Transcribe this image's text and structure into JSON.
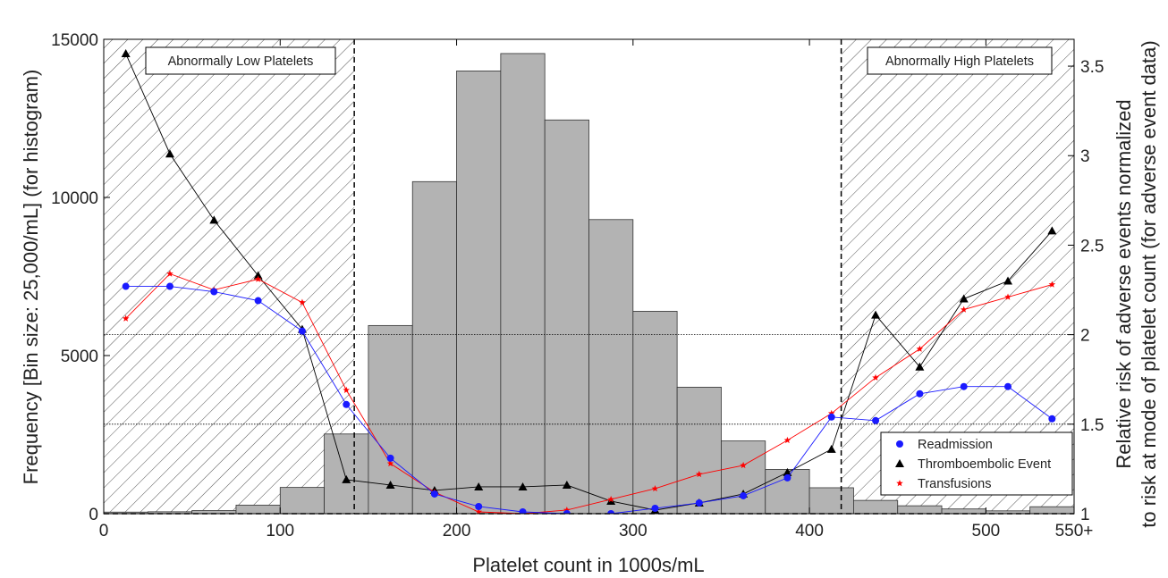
{
  "chart_data": {
    "type": "bar+line",
    "xlabel": "Platelet count in 1000s/mL",
    "ylabel": "Frequency [Bin size: 25,000/mL] (for histogram)",
    "y2label_line1": "Relative risk of adverse events normalized",
    "y2label_line2": "to risk at mode of platelet count (for adverse event data)",
    "xlim": [
      0,
      550
    ],
    "ylim": [
      0,
      15000
    ],
    "y2lim": [
      1,
      3.65
    ],
    "x_ticks": [
      {
        "value": 0,
        "label": "0"
      },
      {
        "value": 100,
        "label": "100"
      },
      {
        "value": 200,
        "label": "200"
      },
      {
        "value": 300,
        "label": "300"
      },
      {
        "value": 400,
        "label": "400"
      },
      {
        "value": 500,
        "label": "500"
      },
      {
        "value": 550,
        "label": "550+"
      }
    ],
    "y_ticks": [
      {
        "value": 0,
        "label": "0"
      },
      {
        "value": 5000,
        "label": "5000"
      },
      {
        "value": 10000,
        "label": "10000"
      },
      {
        "value": 15000,
        "label": "15000"
      }
    ],
    "y2_ticks": [
      {
        "value": 1,
        "label": "1"
      },
      {
        "value": 1.5,
        "label": "1.5"
      },
      {
        "value": 2,
        "label": "2"
      },
      {
        "value": 2.5,
        "label": "2.5"
      },
      {
        "value": 3,
        "label": "3"
      },
      {
        "value": 3.5,
        "label": "3.5"
      }
    ],
    "histogram": {
      "bin_width": 25,
      "bin_starts": [
        0,
        25,
        50,
        75,
        100,
        125,
        150,
        175,
        200,
        225,
        250,
        275,
        300,
        325,
        350,
        375,
        400,
        425,
        450,
        475,
        500,
        525
      ],
      "values": [
        50,
        60,
        100,
        270,
        830,
        2520,
        5950,
        10500,
        14000,
        14550,
        12450,
        9300,
        6400,
        4000,
        2300,
        1400,
        820,
        420,
        250,
        150,
        90,
        220
      ],
      "color": "#b3b3b3"
    },
    "regions": [
      {
        "label": "Abnormally Low Platelets",
        "from": 0,
        "to": 142
      },
      {
        "label": "Abnormally High Platelets",
        "from": 418,
        "to": 550
      }
    ],
    "reference_lines_y2": [
      1.0,
      1.5,
      2.0
    ],
    "x_points": [
      12.5,
      37.5,
      62.5,
      87.5,
      112.5,
      137.5,
      162.5,
      187.5,
      212.5,
      237.5,
      262.5,
      287.5,
      312.5,
      337.5,
      362.5,
      387.5,
      412.5,
      437.5,
      462.5,
      487.5,
      512.5,
      537.5
    ],
    "series": [
      {
        "name": "Readmission",
        "marker": "circle",
        "color": "#1a1aff",
        "values": [
          2.27,
          2.27,
          2.24,
          2.19,
          2.02,
          1.61,
          1.31,
          1.11,
          1.04,
          1.01,
          1.0,
          1.0,
          1.03,
          1.06,
          1.1,
          1.2,
          1.54,
          1.52,
          1.67,
          1.71,
          1.71,
          1.53
        ]
      },
      {
        "name": "Thromboembolic Event",
        "marker": "triangle",
        "color": "#000000",
        "values": [
          3.57,
          3.01,
          2.64,
          2.33,
          2.03,
          1.19,
          1.16,
          1.13,
          1.15,
          1.15,
          1.16,
          1.07,
          1.02,
          1.06,
          1.11,
          1.23,
          1.36,
          2.11,
          1.82,
          2.2,
          2.3,
          2.58
        ]
      },
      {
        "name": "Transfusions",
        "marker": "star",
        "color": "#ff0000",
        "values": [
          2.09,
          2.34,
          2.25,
          2.31,
          2.18,
          1.69,
          1.28,
          1.12,
          1.01,
          1.0,
          1.02,
          1.08,
          1.14,
          1.22,
          1.27,
          1.41,
          1.56,
          1.76,
          1.92,
          2.14,
          2.21,
          2.28
        ]
      }
    ],
    "legend_position": "lower-right",
    "grid": false
  }
}
